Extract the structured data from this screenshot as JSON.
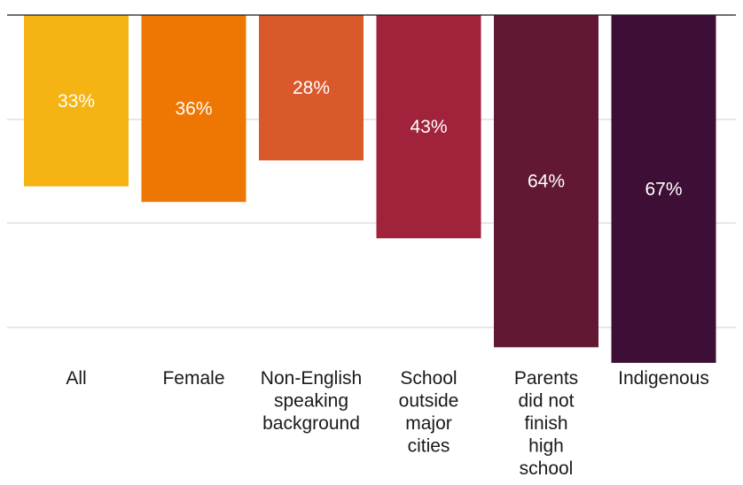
{
  "chart_data": {
    "type": "bar",
    "orientation": "vertical-hanging",
    "categories": [
      [
        "All"
      ],
      [
        "Female"
      ],
      [
        "Non-English",
        "speaking",
        "background"
      ],
      [
        "School",
        "outside",
        "major",
        "cities"
      ],
      [
        "Parents",
        "did not",
        "finish",
        "high",
        "school"
      ],
      [
        "Indigenous"
      ]
    ],
    "values": [
      33,
      36,
      28,
      43,
      64,
      67
    ],
    "data_labels": [
      "33%",
      "36%",
      "28%",
      "43%",
      "64%",
      "67%"
    ],
    "colors": [
      "#F5B314",
      "#EE7703",
      "#D9592B",
      "#A1223B",
      "#621734",
      "#3E0F36"
    ],
    "ylim": [
      0,
      67
    ],
    "grid": true,
    "legend": "none",
    "title": "",
    "xlabel": "",
    "ylabel": ""
  }
}
